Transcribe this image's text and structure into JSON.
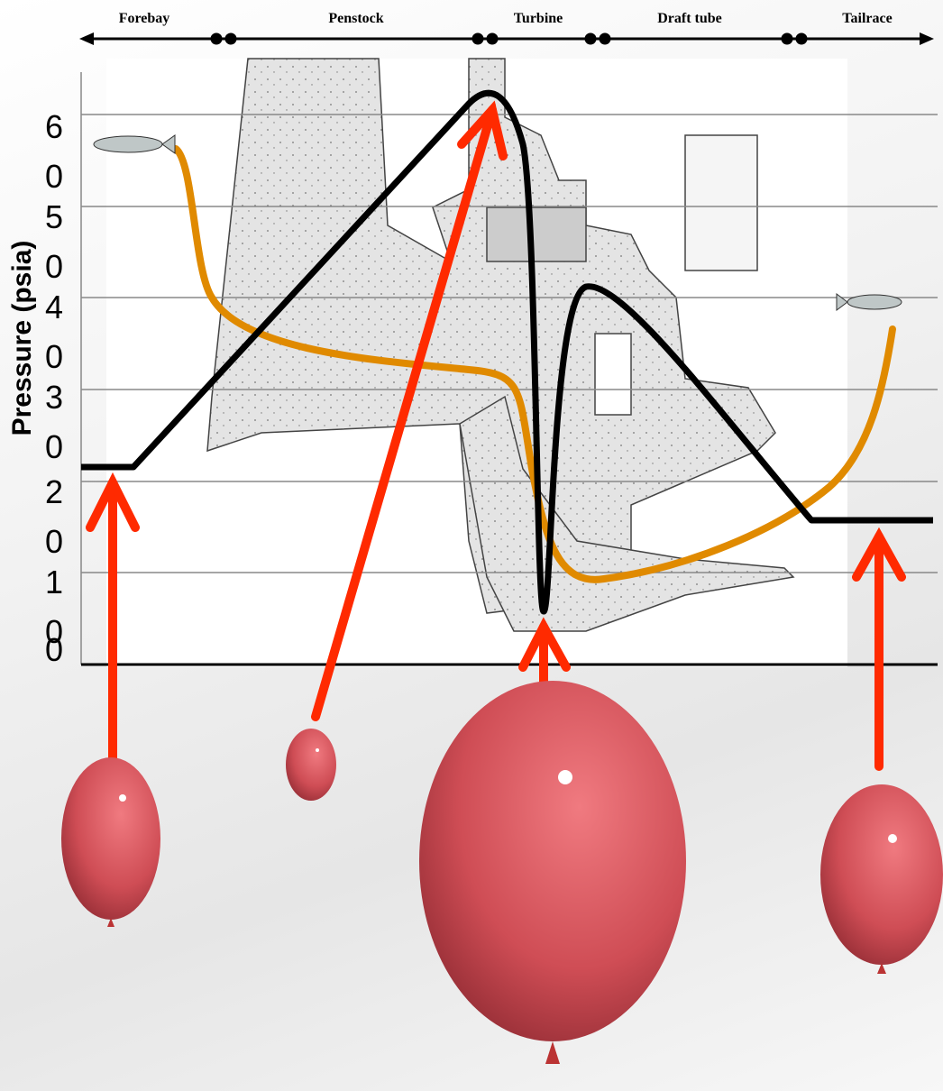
{
  "header": {
    "sections": [
      "Forebay",
      "Penstock",
      "Turbine",
      "Draft tube",
      "Tailrace"
    ]
  },
  "axis": {
    "label": "Pressure (psia)",
    "ticks": [
      "60",
      "50",
      "40",
      "30",
      "20",
      "10",
      "0"
    ]
  }
}
